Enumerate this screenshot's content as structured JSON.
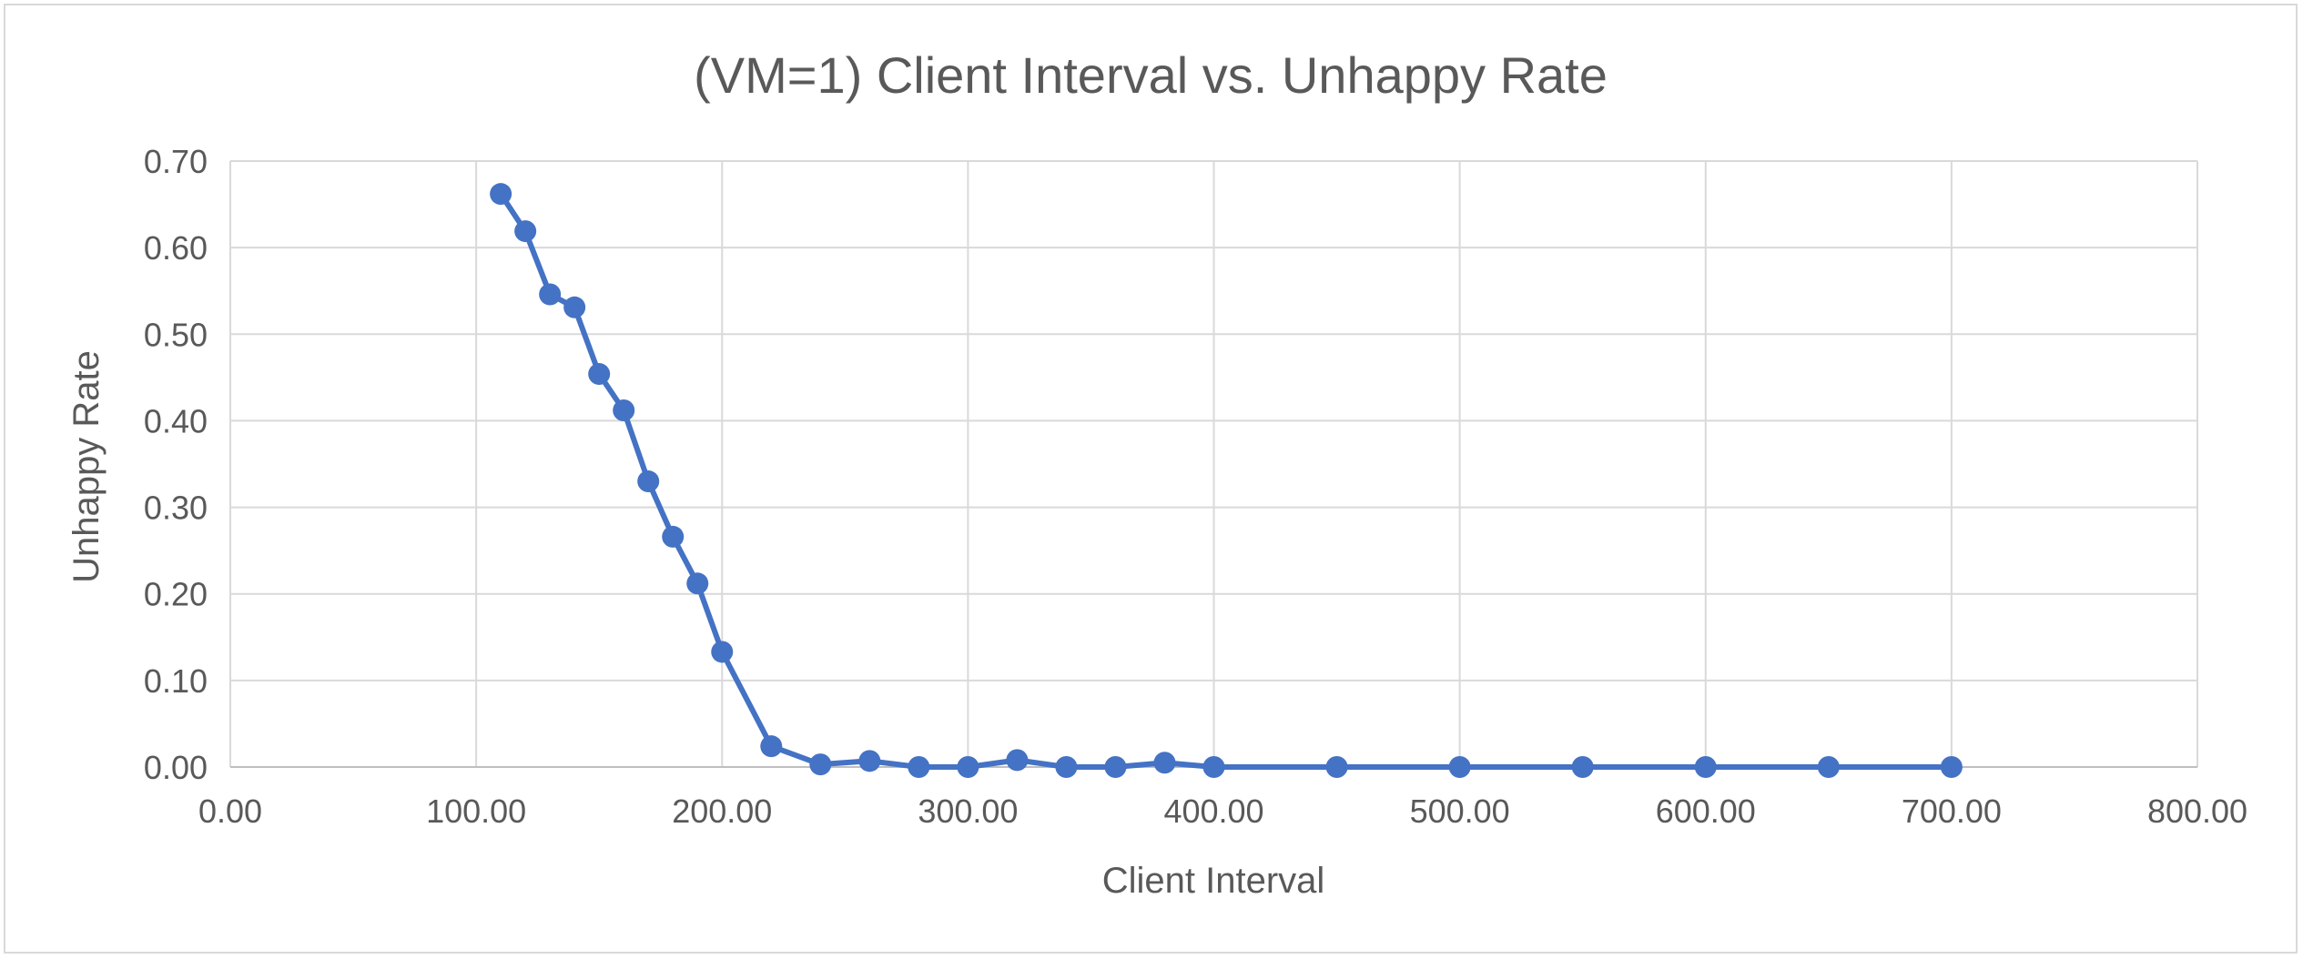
{
  "chart_data": {
    "type": "scatter",
    "title": "(VM=1) Client Interval vs. Unhappy Rate",
    "xlabel": "Client Interval",
    "ylabel": "Unhappy Rate",
    "xlim": [
      0,
      800
    ],
    "ylim": [
      0,
      0.7
    ],
    "x_ticks": [
      0,
      100,
      200,
      300,
      400,
      500,
      600,
      700,
      800
    ],
    "y_ticks": [
      0,
      0.1,
      0.2,
      0.3,
      0.4,
      0.5,
      0.6,
      0.7
    ],
    "x_tick_labels": [
      "0.00",
      "100.00",
      "200.00",
      "300.00",
      "400.00",
      "500.00",
      "600.00",
      "700.00",
      "800.00"
    ],
    "y_tick_labels": [
      "0.00",
      "0.10",
      "0.20",
      "0.30",
      "0.40",
      "0.50",
      "0.60",
      "0.70"
    ],
    "grid": true,
    "legend": "none",
    "line_style": "straight lines with markers",
    "series": [
      {
        "color": "#4472c4",
        "x": [
          110,
          120,
          130,
          140,
          150,
          160,
          170,
          180,
          190,
          200,
          220,
          240,
          260,
          280,
          300,
          320,
          340,
          360,
          380,
          400,
          450,
          500,
          550,
          600,
          650,
          700
        ],
        "y": [
          0.662,
          0.619,
          0.546,
          0.531,
          0.454,
          0.412,
          0.33,
          0.266,
          0.212,
          0.133,
          0.024,
          0.003,
          0.007,
          0.0,
          0.0,
          0.008,
          0.0,
          0.0,
          0.005,
          0.0,
          0.0,
          0.0,
          0.0,
          0.0,
          0.0,
          0.0
        ]
      }
    ]
  }
}
